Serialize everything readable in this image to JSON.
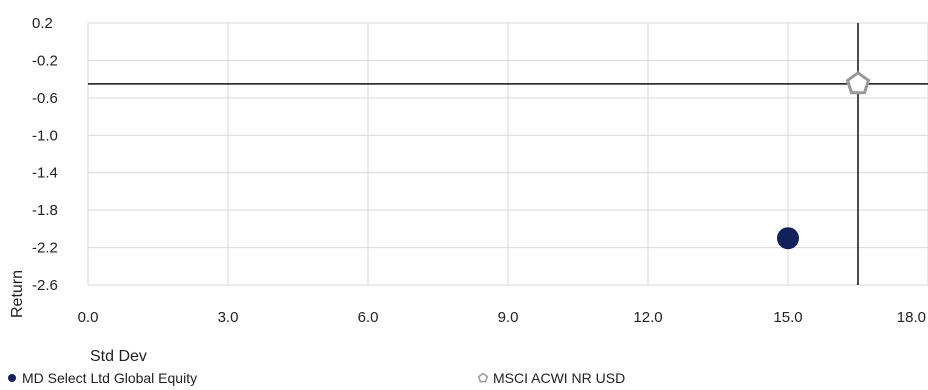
{
  "chart_data": {
    "type": "scatter",
    "xlabel": "Std Dev",
    "ylabel": "Return",
    "xlim": [
      0,
      18
    ],
    "ylim": [
      -2.6,
      0.2
    ],
    "x_ticks": [
      {
        "value": 0,
        "label": "0.0"
      },
      {
        "value": 3,
        "label": "3.0"
      },
      {
        "value": 6,
        "label": "6.0"
      },
      {
        "value": 9,
        "label": "9.0"
      },
      {
        "value": 12,
        "label": "12.0"
      },
      {
        "value": 15,
        "label": "15.0"
      },
      {
        "value": 18,
        "label": "18.0"
      }
    ],
    "y_ticks": [
      {
        "value": 0.2,
        "label": "0.2"
      },
      {
        "value": -0.2,
        "label": "-0.2"
      },
      {
        "value": -0.6,
        "label": "-0.6"
      },
      {
        "value": -1.0,
        "label": "-1.0"
      },
      {
        "value": -1.4,
        "label": "-1.4"
      },
      {
        "value": -1.8,
        "label": "-1.8"
      },
      {
        "value": -2.2,
        "label": "-2.2"
      },
      {
        "value": -2.6,
        "label": "-2.6"
      }
    ],
    "grid": true,
    "legend_position": "bottom",
    "series": [
      {
        "name": "MD Select Ltd Global Equity",
        "marker": "circle",
        "color": "#13215a",
        "x": 15.0,
        "y": -2.1
      },
      {
        "name": "MSCI ACWI NR USD",
        "marker": "pentagon",
        "color": "#999999",
        "x": 16.5,
        "y": -0.45
      }
    ],
    "reference_lines": {
      "x": 16.5,
      "y": -0.45,
      "color": "#111111"
    }
  }
}
